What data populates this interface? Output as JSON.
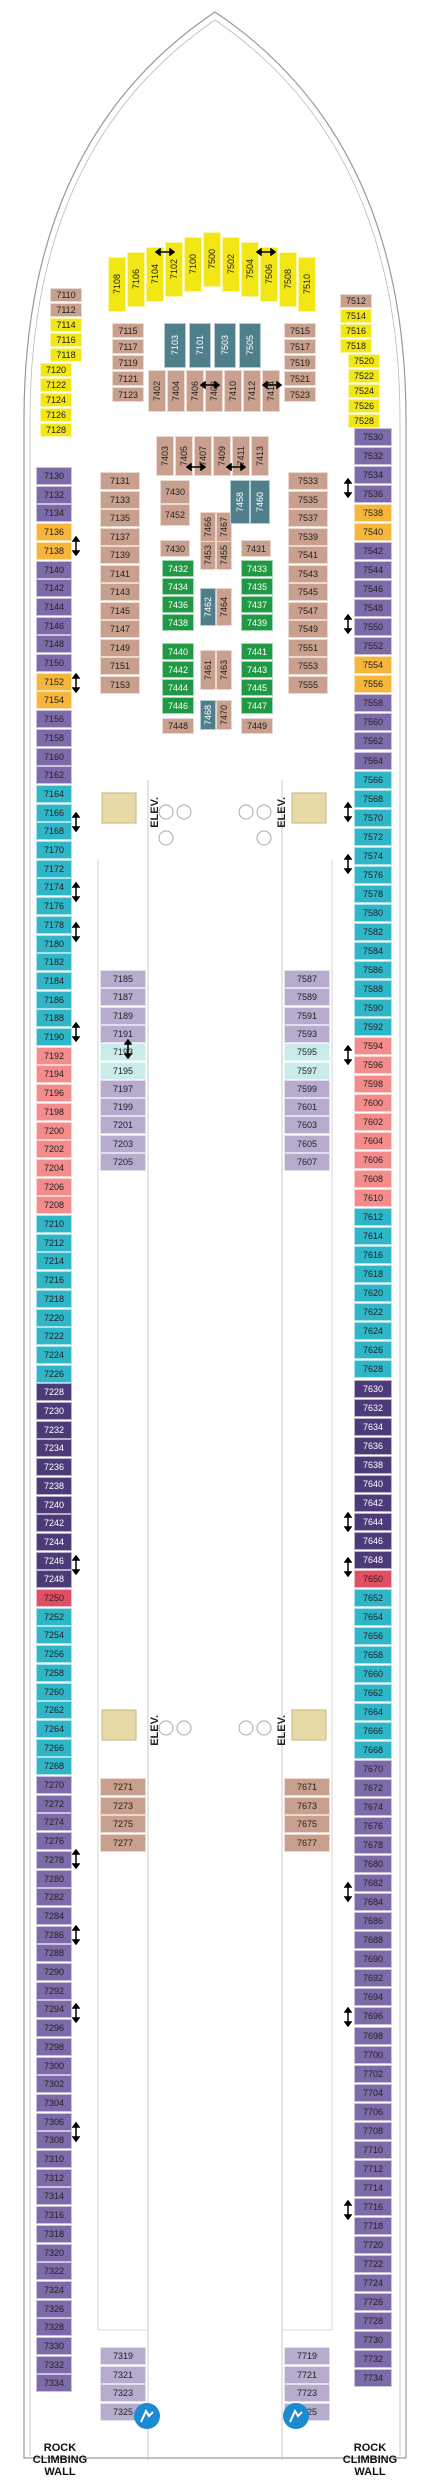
{
  "map": {
    "elevator_label": "ELEV.",
    "rock_climbing_label": [
      "ROCK",
      "CLIMBING",
      "WALL"
    ],
    "colors": {
      "yellow": "#f2e614",
      "tan": "#c9a08e",
      "purple": "#7d6aa8",
      "purple_light": "#b7acce",
      "purple_dark": "#4d3b79",
      "teal": "#2fb6c8",
      "red": "#e04f63",
      "light_pink": "#f48c8c",
      "orange": "#f6b53b",
      "green": "#1f9943",
      "slate": "#4f7f8b",
      "aqua": "#c9ecea"
    },
    "icons": [
      "accessible-icon",
      "connecting-arrow-icon",
      "rock-climbing-icon",
      "star-icon"
    ],
    "cabins": {
      "fwd_yellow_top": [
        "7108",
        "7106",
        "7104",
        "7102",
        "7100",
        "7500",
        "7502",
        "7504",
        "7506",
        "7508",
        "7510"
      ],
      "fwd_left_yellow": [
        "7110",
        "7112",
        "7114",
        "7116",
        "7118",
        "7120",
        "7122",
        "7124",
        "7126",
        "7128"
      ],
      "fwd_right_yellow": [
        "7512",
        "7514",
        "7516",
        "7518",
        "7520",
        "7522",
        "7524",
        "7526",
        "7528"
      ],
      "fwd_tan_left": [
        "7115",
        "7117",
        "7119",
        "7121",
        "7123"
      ],
      "fwd_tan_right": [
        "7515",
        "7517",
        "7519",
        "7521",
        "7523"
      ],
      "fwd_slate": [
        "7103",
        "7101",
        "7503",
        "7505",
        "7402",
        "7404",
        "7406",
        "7408",
        "7410",
        "7412",
        "7414"
      ],
      "port_col": [
        "7130",
        "7132",
        "7134",
        "7136",
        "7138",
        "7140",
        "7142",
        "7144",
        "7146",
        "7148",
        "7150",
        "7152",
        "7154",
        "7156",
        "7158",
        "7160",
        "7162",
        "7164",
        "7166",
        "7168",
        "7170",
        "7172",
        "7174",
        "7176",
        "7178",
        "7180",
        "7182",
        "7184",
        "7186",
        "7188",
        "7190",
        "7192",
        "7194",
        "7196",
        "7198",
        "7200",
        "7202",
        "7204",
        "7206",
        "7208",
        "7210",
        "7212",
        "7214",
        "7216",
        "7218",
        "7220",
        "7222",
        "7224",
        "7226",
        "7228",
        "7230",
        "7232",
        "7234",
        "7236",
        "7238",
        "7240",
        "7242",
        "7244",
        "7246",
        "7248",
        "7250",
        "7252",
        "7254",
        "7256",
        "7258",
        "7260",
        "7262",
        "7264",
        "7266",
        "7268",
        "7270",
        "7272",
        "7274",
        "7276",
        "7278",
        "7280",
        "7282",
        "7284",
        "7286",
        "7288",
        "7290",
        "7292",
        "7294",
        "7296",
        "7298",
        "7300",
        "7302",
        "7304",
        "7306",
        "7308",
        "7310",
        "7312",
        "7314",
        "7316",
        "7318",
        "7320",
        "7322",
        "7324",
        "7326",
        "7328",
        "7330",
        "7332",
        "7334"
      ],
      "stbd_col": [
        "7530",
        "7532",
        "7534",
        "7536",
        "7538",
        "7540",
        "7542",
        "7544",
        "7546",
        "7548",
        "7550",
        "7552",
        "7554",
        "7556",
        "7558",
        "7560",
        "7562",
        "7564",
        "7566",
        "7568",
        "7570",
        "7572",
        "7574",
        "7576",
        "7578",
        "7580",
        "7582",
        "7584",
        "7586",
        "7588",
        "7590",
        "7592",
        "7594",
        "7596",
        "7598",
        "7600",
        "7602",
        "7604",
        "7606",
        "7608",
        "7610",
        "7612",
        "7614",
        "7616",
        "7618",
        "7620",
        "7622",
        "7624",
        "7626",
        "7628",
        "7630",
        "7632",
        "7634",
        "7636",
        "7638",
        "7640",
        "7642",
        "7644",
        "7646",
        "7648",
        "7650",
        "7652",
        "7654",
        "7656",
        "7658",
        "7660",
        "7662",
        "7664",
        "7666",
        "7668",
        "7670",
        "7672",
        "7674",
        "7676",
        "7678",
        "7680",
        "7682",
        "7684",
        "7686",
        "7688",
        "7690",
        "7692",
        "7694",
        "7696",
        "7698",
        "7700",
        "7702",
        "7704",
        "7706",
        "7708",
        "7710",
        "7712",
        "7714",
        "7716",
        "7718",
        "7720",
        "7722",
        "7724",
        "7726",
        "7728",
        "7730",
        "7732",
        "7734"
      ],
      "inner_tan_left": [
        "7131",
        "7133",
        "7135",
        "7137",
        "7139",
        "7141",
        "7143",
        "7145",
        "7147",
        "7149",
        "7151",
        "7153"
      ],
      "inner_tan_right": [
        "7533",
        "7535",
        "7537",
        "7539",
        "7541",
        "7543",
        "7545",
        "7547",
        "7549",
        "7551",
        "7553",
        "7555"
      ],
      "central_tan_top": [
        "7403",
        "7405",
        "7407",
        "7409",
        "7411",
        "7413"
      ],
      "central_slate_inner": [
        "7430",
        "7452",
        "7458",
        "7460"
      ],
      "central_mixed": [
        "7430",
        "7453",
        "7431",
        "7455",
        "7462",
        "7464",
        "7461",
        "7463",
        "7448",
        "7449",
        "7468",
        "7470",
        "7466",
        "7467"
      ],
      "central_green": [
        "7432",
        "7434",
        "7436",
        "7438",
        "7433",
        "7435",
        "7437",
        "7439",
        "7440",
        "7442",
        "7444",
        "7446",
        "7441",
        "7443",
        "7445",
        "7447"
      ],
      "mid_purple_left": [
        "7185",
        "7187",
        "7189",
        "7191",
        "7193",
        "7195",
        "7197",
        "7199",
        "7201",
        "7203",
        "7205"
      ],
      "mid_purple_right": [
        "7587",
        "7589",
        "7591",
        "7593",
        "7595",
        "7597",
        "7599",
        "7601",
        "7603",
        "7605",
        "7607"
      ],
      "aft_tan_left": [
        "7271",
        "7273",
        "7275",
        "7277"
      ],
      "aft_tan_right": [
        "7671",
        "7673",
        "7675",
        "7677"
      ],
      "aft_purple_left": [
        "7319",
        "7321",
        "7323",
        "7325"
      ],
      "aft_purple_right": [
        "7719",
        "7721",
        "7723",
        "7725"
      ]
    }
  }
}
